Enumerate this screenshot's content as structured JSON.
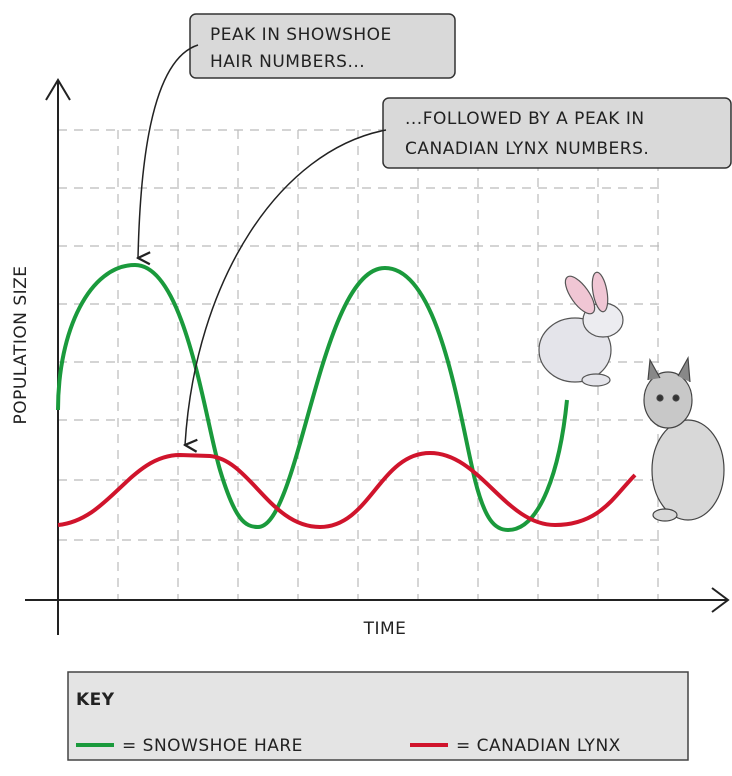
{
  "axes": {
    "y_label": "POPULATION SIZE",
    "x_label": "TIME"
  },
  "callouts": [
    {
      "lines": [
        "PEAK IN SHOWSHOE",
        "HAIR NUMBERS..."
      ]
    },
    {
      "lines": [
        "...FOLLOWED BY A PEAK IN",
        "CANADIAN LYNX NUMBERS."
      ]
    }
  ],
  "key": {
    "title": "KEY",
    "items": [
      {
        "label": "= SNOWSHOE HARE",
        "color": "#1a9a3c"
      },
      {
        "label": "= CANADIAN LYNX",
        "color": "#d0142c"
      }
    ]
  }
}
